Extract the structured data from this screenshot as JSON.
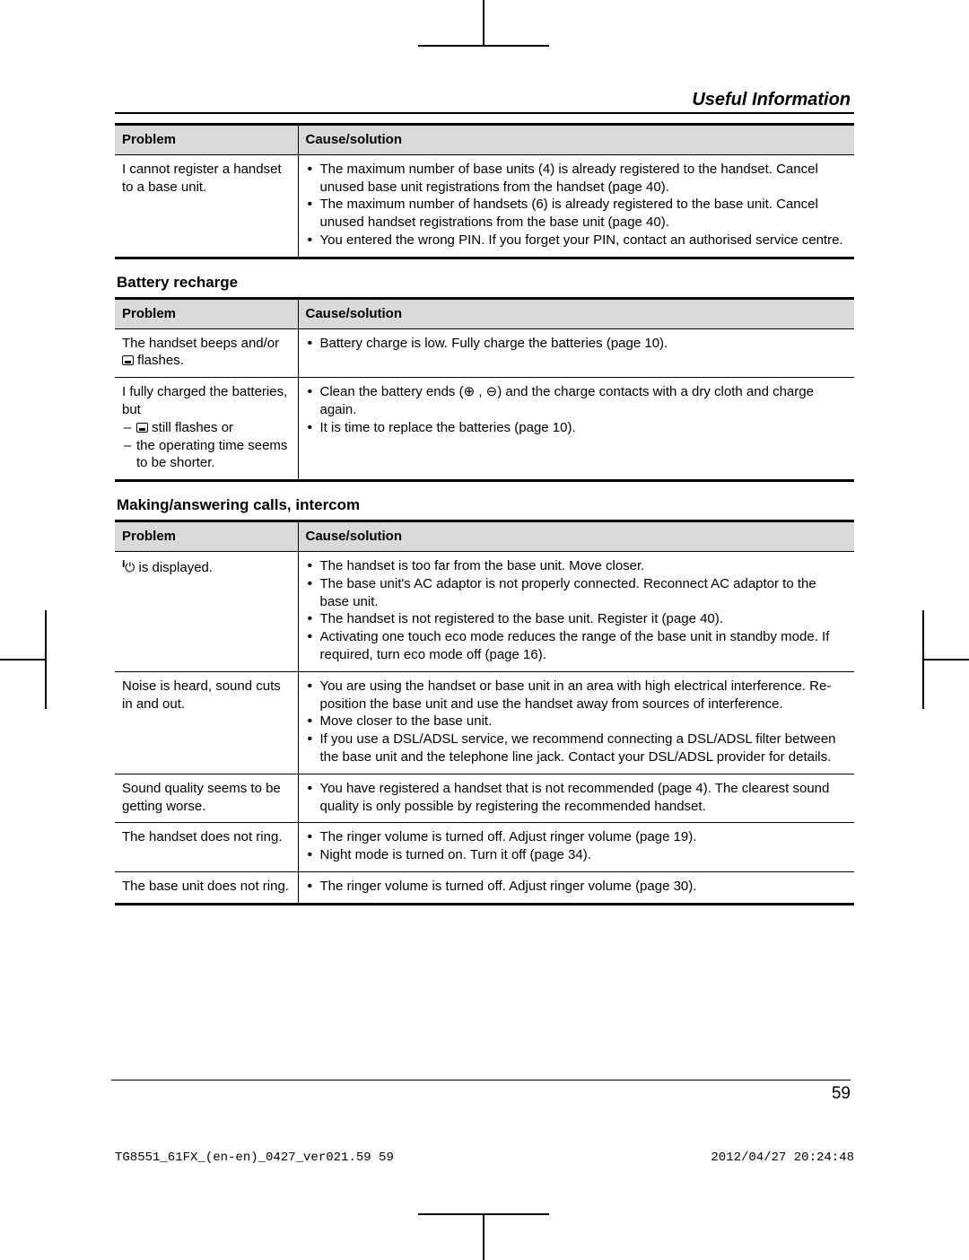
{
  "section_title": "Useful Information",
  "page_number": "59",
  "footer_left": "TG8551_61FX_(en-en)_0427_ver021.59   59",
  "footer_right": "2012/04/27   20:24:48",
  "table1": {
    "col_problem": "Problem",
    "col_solution": "Cause/solution",
    "row1_problem": "I cannot register a handset to a base unit.",
    "row1_b1": "The maximum number of base units (4) is already registered to the handset. Cancel unused base unit registrations from the handset (page 40).",
    "row1_b2": "The maximum number of handsets (6) is already registered to the base unit. Cancel unused handset registrations from the base unit (page 40).",
    "row1_b3": "You entered the wrong PIN. If you forget your PIN, contact an authorised service centre."
  },
  "subhead_battery": "Battery recharge",
  "table2": {
    "col_problem": "Problem",
    "col_solution": "Cause/solution",
    "row1_problem_pre": "The handset beeps and/or ",
    "row1_problem_post": " flashes.",
    "row1_b1": "Battery charge is low. Fully charge the batteries (page 10).",
    "row2_problem_pre": "I fully charged the batteries, but",
    "row2_d1_pre": " still flashes or",
    "row2_d2": "the operating time seems to be shorter.",
    "row2_b1": "Clean the battery ends (⊕ , ⊖) and the charge contacts with a dry cloth and charge again.",
    "row2_b2": "It is time to replace the batteries (page 10)."
  },
  "subhead_calls": "Making/answering calls, intercom",
  "table3": {
    "col_problem": "Problem",
    "col_solution": "Cause/solution",
    "row1_problem_post": " is displayed.",
    "row1_b1": "The handset is too far from the base unit. Move closer.",
    "row1_b2": "The base unit's AC adaptor is not properly connected. Reconnect AC adaptor to the base unit.",
    "row1_b3": "The handset is not registered to the base unit. Register it (page 40).",
    "row1_b4": "Activating one touch eco mode reduces the range of the base unit in standby mode. If required, turn eco mode off (page 16).",
    "row2_problem": "Noise is heard, sound cuts in and out.",
    "row2_b1": "You are using the handset or base unit in an area with high electrical interference. Re-position the base unit and use the handset away from sources of interference.",
    "row2_b2": "Move closer to the base unit.",
    "row2_b3": "If you use a DSL/ADSL service, we recommend connecting a DSL/ADSL filter between the base unit and the telephone line jack. Contact your DSL/ADSL provider for details.",
    "row3_problem": "Sound quality seems to be getting worse.",
    "row3_b1": "You have registered a handset that is not recommended (page 4). The clearest sound quality is only possible by registering the recommended handset.",
    "row4_problem": "The handset does not ring.",
    "row4_b1": "The ringer volume is turned off. Adjust ringer volume (page 19).",
    "row4_b2": "Night mode is turned on. Turn it off (page 34).",
    "row5_problem": "The base unit does not ring.",
    "row5_b1": "The ringer volume is turned off. Adjust ringer volume (page 30)."
  }
}
